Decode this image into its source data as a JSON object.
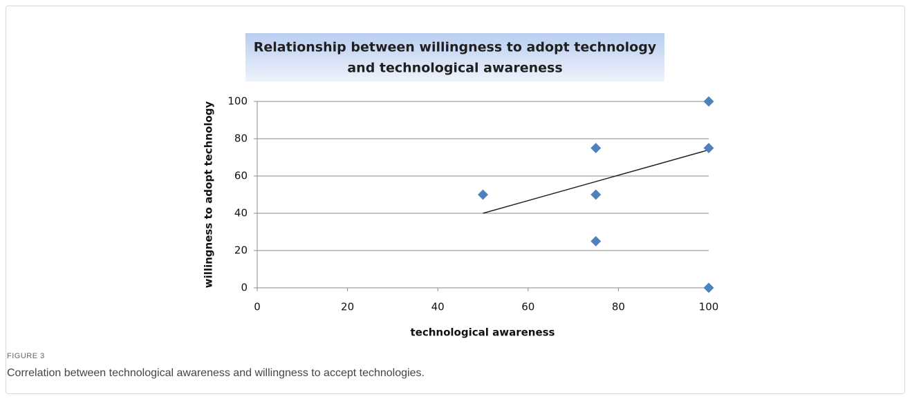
{
  "chart_data": {
    "type": "scatter",
    "title": [
      "Relationship between willingness to adopt technology",
      "and technological awareness"
    ],
    "x_label": "technological awareness",
    "y_label": "willingness to adopt technology",
    "x": [
      50,
      75,
      75,
      75,
      100,
      100,
      100
    ],
    "values": [
      50,
      75,
      50,
      25,
      100,
      75,
      0
    ],
    "color": "#4f81bd",
    "trendline": {
      "x": [
        50,
        100
      ],
      "y": [
        40,
        74
      ],
      "color": "#222222"
    },
    "xlim": [
      0,
      100
    ],
    "xticks": [
      0,
      20,
      40,
      60,
      80,
      100
    ],
    "ylim": [
      0,
      100
    ],
    "yticks": [
      0,
      20,
      40,
      60,
      80,
      100
    ],
    "grid": true
  },
  "figure": {
    "label": "FIGURE 3",
    "caption": "Correlation between technological awareness and willingness to accept technologies."
  }
}
